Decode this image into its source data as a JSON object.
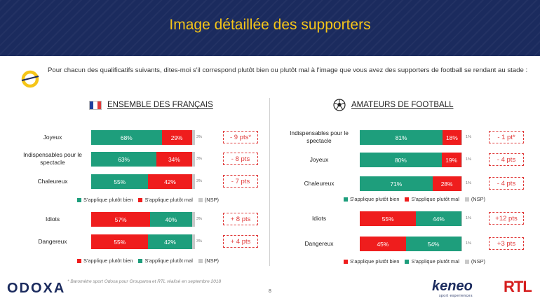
{
  "header": {
    "title": "Image détaillée des supporters"
  },
  "question": "Pour chacun des qualificatifs suivants, dites-moi s'il correspond plutôt bien ou plutôt mal à l'image que vous avez des supporters de football se rendant au stade :",
  "colors": {
    "green": "#1e9e7c",
    "red": "#ef1d1d",
    "grey": "#c9c9c9",
    "navy": "#1b2b5e",
    "yellow": "#f5c518"
  },
  "chart_data": [
    {
      "type": "bar",
      "title": "ENSEMBLE DES FRANÇAIS",
      "icon": "france-flag-icon",
      "groups": [
        {
          "order": [
            "bien",
            "mal",
            "nsp"
          ],
          "legend": [
            "S'applique plutôt bien",
            "S'applique plutôt mal",
            "(NSP)"
          ],
          "rows": [
            {
              "label": "Joyeux",
              "bien": 68,
              "mal": 29,
              "nsp": 3,
              "delta": "- 9 pts*"
            },
            {
              "label": "Indispensables pour le spectacle",
              "bien": 63,
              "mal": 34,
              "nsp": 3,
              "delta": "- 8 pts"
            },
            {
              "label": "Chaleureux",
              "bien": 55,
              "mal": 42,
              "nsp": 3,
              "delta": "- 7 pts"
            }
          ]
        },
        {
          "order": [
            "bien",
            "mal",
            "nsp"
          ],
          "legend": [
            "S'applique plutôt bien",
            "S'applique plutôt mal",
            "(NSP)"
          ],
          "rows": [
            {
              "label": "Idiots",
              "bien": 57,
              "mal": 40,
              "nsp": 3,
              "delta": "+ 8 pts"
            },
            {
              "label": "Dangereux",
              "bien": 55,
              "mal": 42,
              "nsp": 3,
              "delta": "+ 4 pts"
            }
          ]
        }
      ]
    },
    {
      "type": "bar",
      "title": "AMATEURS DE FOOTBALL",
      "icon": "football-icon",
      "groups": [
        {
          "order": [
            "bien",
            "mal",
            "nsp"
          ],
          "legend": [
            "S'applique plutôt bien",
            "S'applique plutôt mal",
            "(NSP)"
          ],
          "rows": [
            {
              "label": "Indispensables pour le spectacle",
              "bien": 81,
              "mal": 18,
              "nsp": 1,
              "delta": "- 1 pt*"
            },
            {
              "label": "Joyeux",
              "bien": 80,
              "mal": 19,
              "nsp": 1,
              "delta": "- 4 pts"
            },
            {
              "label": "Chaleureux",
              "bien": 71,
              "mal": 28,
              "nsp": 1,
              "delta": "- 4 pts"
            }
          ]
        },
        {
          "order": [
            "bien",
            "mal",
            "nsp"
          ],
          "legend": [
            "S'applique plutôt bien",
            "S'applique plutôt mal",
            "(NSP)"
          ],
          "rows": [
            {
              "label": "Idiots",
              "bien": 55,
              "mal": 44,
              "nsp": 1,
              "delta": "+12 pts"
            },
            {
              "label": "Dangereux",
              "bien": 45,
              "mal": 54,
              "nsp": 1,
              "delta": "+3 pts"
            }
          ]
        }
      ]
    }
  ],
  "footer": {
    "brand": "ODOXA",
    "note": "* Baromètre sport Odoxa pour Groupama et RTL réalisé en septembre 2018",
    "page": "8",
    "partner1": "keneo",
    "partner1_sub": "sport experiences",
    "partner2": "RTL"
  }
}
